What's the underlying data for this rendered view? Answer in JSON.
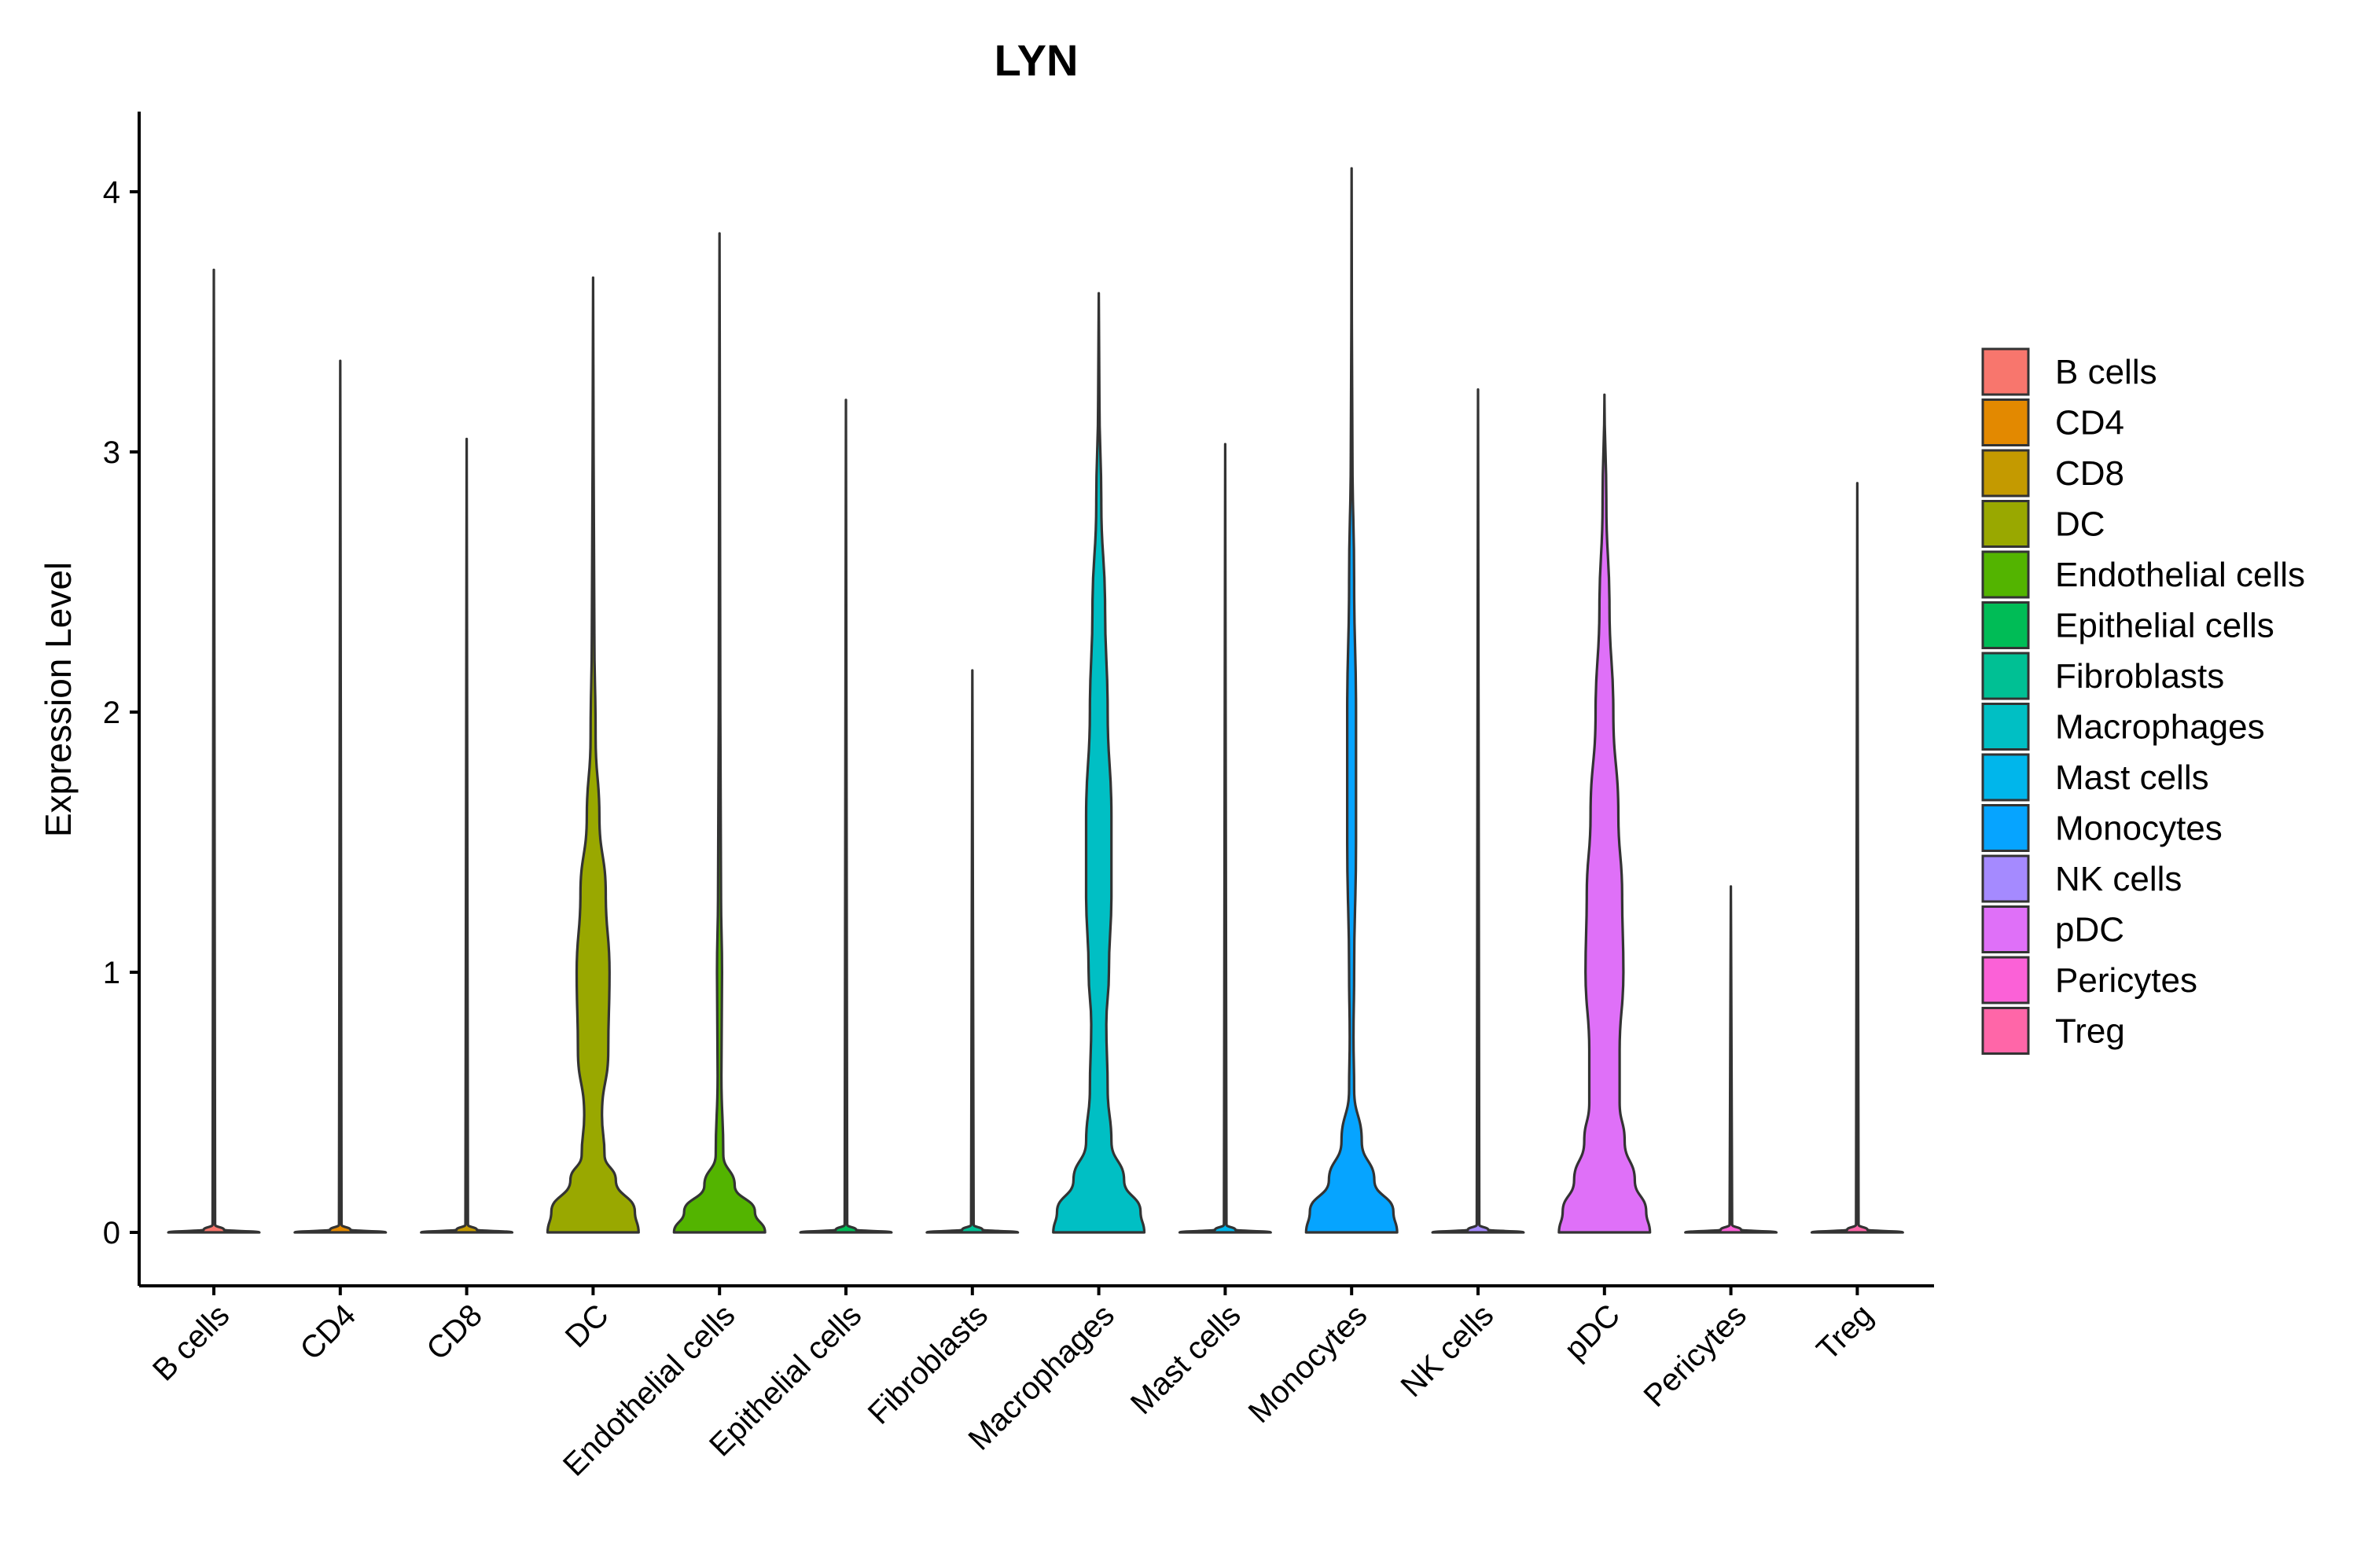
{
  "chart_data": {
    "type": "violin",
    "title": "LYN",
    "xlabel": "",
    "ylabel": "Expression Level",
    "ylim": [
      -0.2,
      4.3
    ],
    "yticks": [
      0,
      1,
      2,
      3,
      4
    ],
    "categories": [
      "B cells",
      "CD4",
      "CD8",
      "DC",
      "Endothelial cells",
      "Epithelial cells",
      "Fibroblasts",
      "Macrophages",
      "Mast cells",
      "Monocytes",
      "NK cells",
      "pDC",
      "Pericytes",
      "Treg"
    ],
    "colors": [
      "#F8766D",
      "#E38900",
      "#C49A00",
      "#99A800",
      "#53B400",
      "#00BC56",
      "#00C094",
      "#00BFC4",
      "#00B6EB",
      "#06A4FF",
      "#A58AFF",
      "#DF70F8",
      "#FB61D7",
      "#FF66A8"
    ],
    "max_values": [
      3.7,
      3.35,
      3.05,
      3.67,
      3.84,
      3.2,
      2.16,
      3.61,
      3.03,
      4.09,
      3.24,
      3.22,
      1.33,
      2.88
    ],
    "density_half_widths": [
      [
        [
          0,
          0.36
        ],
        [
          0.01,
          0.08
        ],
        [
          0.03,
          0.01
        ],
        [
          3.7,
          0
        ]
      ],
      [
        [
          0,
          0.36
        ],
        [
          0.01,
          0.08
        ],
        [
          0.03,
          0.01
        ],
        [
          3.35,
          0
        ]
      ],
      [
        [
          0,
          0.36
        ],
        [
          0.01,
          0.08
        ],
        [
          0.03,
          0.01
        ],
        [
          3.05,
          0
        ]
      ],
      [
        [
          0,
          0.36
        ],
        [
          0.08,
          0.33
        ],
        [
          0.2,
          0.18
        ],
        [
          0.3,
          0.09
        ],
        [
          0.45,
          0.07
        ],
        [
          0.7,
          0.12
        ],
        [
          1.0,
          0.13
        ],
        [
          1.3,
          0.1
        ],
        [
          1.6,
          0.05
        ],
        [
          1.9,
          0.02
        ],
        [
          2.3,
          0.01
        ],
        [
          3.0,
          0.004
        ],
        [
          3.67,
          0
        ]
      ],
      [
        [
          0,
          0.36
        ],
        [
          0.08,
          0.28
        ],
        [
          0.18,
          0.12
        ],
        [
          0.3,
          0.03
        ],
        [
          0.6,
          0.015
        ],
        [
          1.0,
          0.02
        ],
        [
          1.3,
          0.012
        ],
        [
          2.0,
          0.006
        ],
        [
          3.0,
          0.003
        ],
        [
          3.84,
          0
        ]
      ],
      [
        [
          0,
          0.36
        ],
        [
          0.01,
          0.08
        ],
        [
          0.03,
          0.01
        ],
        [
          3.2,
          0
        ]
      ],
      [
        [
          0,
          0.36
        ],
        [
          0.01,
          0.08
        ],
        [
          0.03,
          0.01
        ],
        [
          2.16,
          0
        ]
      ],
      [
        [
          0,
          0.36
        ],
        [
          0.08,
          0.33
        ],
        [
          0.2,
          0.2
        ],
        [
          0.35,
          0.1
        ],
        [
          0.55,
          0.07
        ],
        [
          0.8,
          0.06
        ],
        [
          1.0,
          0.08
        ],
        [
          1.3,
          0.1
        ],
        [
          1.6,
          0.1
        ],
        [
          2.0,
          0.07
        ],
        [
          2.4,
          0.05
        ],
        [
          2.8,
          0.02
        ],
        [
          3.2,
          0.005
        ],
        [
          3.61,
          0
        ]
      ],
      [
        [
          0,
          0.36
        ],
        [
          0.01,
          0.08
        ],
        [
          0.03,
          0.01
        ],
        [
          3.03,
          0
        ]
      ],
      [
        [
          0,
          0.36
        ],
        [
          0.08,
          0.33
        ],
        [
          0.2,
          0.18
        ],
        [
          0.35,
          0.08
        ],
        [
          0.55,
          0.02
        ],
        [
          0.75,
          0.015
        ],
        [
          1.0,
          0.02
        ],
        [
          1.5,
          0.035
        ],
        [
          2.0,
          0.035
        ],
        [
          2.5,
          0.02
        ],
        [
          3.0,
          0.006
        ],
        [
          3.5,
          0.002
        ],
        [
          4.09,
          0
        ]
      ],
      [
        [
          0,
          0.36
        ],
        [
          0.01,
          0.08
        ],
        [
          0.03,
          0.01
        ],
        [
          3.24,
          0
        ]
      ],
      [
        [
          0,
          0.36
        ],
        [
          0.08,
          0.33
        ],
        [
          0.2,
          0.24
        ],
        [
          0.35,
          0.16
        ],
        [
          0.5,
          0.12
        ],
        [
          0.7,
          0.12
        ],
        [
          1.0,
          0.15
        ],
        [
          1.3,
          0.14
        ],
        [
          1.6,
          0.11
        ],
        [
          2.0,
          0.07
        ],
        [
          2.4,
          0.04
        ],
        [
          2.8,
          0.015
        ],
        [
          3.22,
          0
        ]
      ],
      [
        [
          0,
          0.36
        ],
        [
          0.01,
          0.08
        ],
        [
          0.03,
          0.01
        ],
        [
          1.33,
          0
        ]
      ],
      [
        [
          0,
          0.36
        ],
        [
          0.01,
          0.08
        ],
        [
          0.03,
          0.01
        ],
        [
          2.88,
          0
        ]
      ]
    ],
    "legend": {
      "title": "",
      "position": "right",
      "items": [
        "B cells",
        "CD4",
        "CD8",
        "DC",
        "Endothelial cells",
        "Epithelial cells",
        "Fibroblasts",
        "Macrophages",
        "Mast cells",
        "Monocytes",
        "NK cells",
        "pDC",
        "Pericytes",
        "Treg"
      ]
    }
  }
}
